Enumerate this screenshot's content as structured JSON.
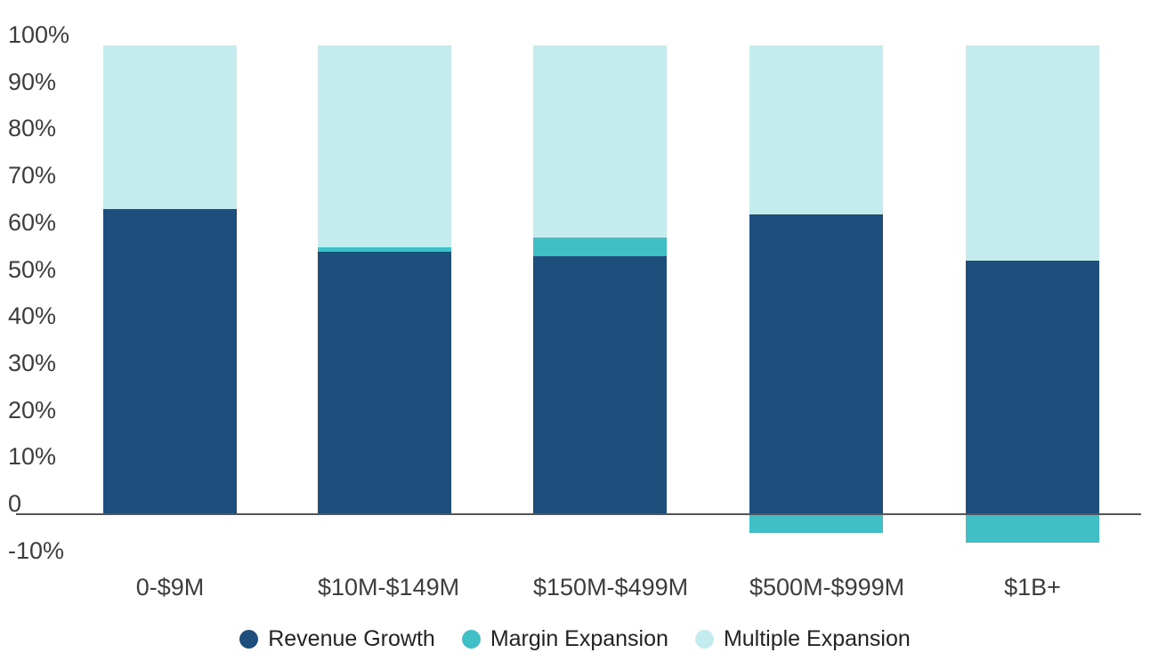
{
  "chart_data": {
    "type": "bar",
    "subtype": "stacked-column",
    "title": "",
    "xlabel": "",
    "ylabel": "",
    "categories": [
      "0-$9M",
      "$10M-$149M",
      "$150M-$499M",
      "$500M-$999M",
      "$1B+"
    ],
    "series": [
      {
        "name": "Revenue Growth",
        "color": "#1E4F7C",
        "values": [
          65,
          56,
          55,
          64,
          54
        ]
      },
      {
        "name": "Margin Expansion",
        "color": "#40BFC6",
        "values": [
          0,
          1,
          4,
          -4,
          -6
        ]
      },
      {
        "name": "Multiple Expansion",
        "color": "#C4EBEE",
        "values": [
          35,
          43,
          41,
          36,
          46
        ]
      }
    ],
    "yticks": [
      {
        "label": "100%",
        "value": 100
      },
      {
        "label": "90%",
        "value": 90
      },
      {
        "label": "80%",
        "value": 80
      },
      {
        "label": "70%",
        "value": 70
      },
      {
        "label": "60%",
        "value": 60
      },
      {
        "label": "50%",
        "value": 50
      },
      {
        "label": "40%",
        "value": 40
      },
      {
        "label": "30%",
        "value": 30
      },
      {
        "label": "20%",
        "value": 20
      },
      {
        "label": "10%",
        "value": 10
      },
      {
        "label": "0",
        "value": 0
      },
      {
        "label": "-10%",
        "value": -10
      }
    ],
    "ylim": [
      -10,
      100
    ],
    "grid": false,
    "baseline_color": "#55565A",
    "legend_position": "bottom",
    "legend": [
      "Revenue Growth",
      "Margin Expansion",
      "Multiple Expansion"
    ]
  }
}
